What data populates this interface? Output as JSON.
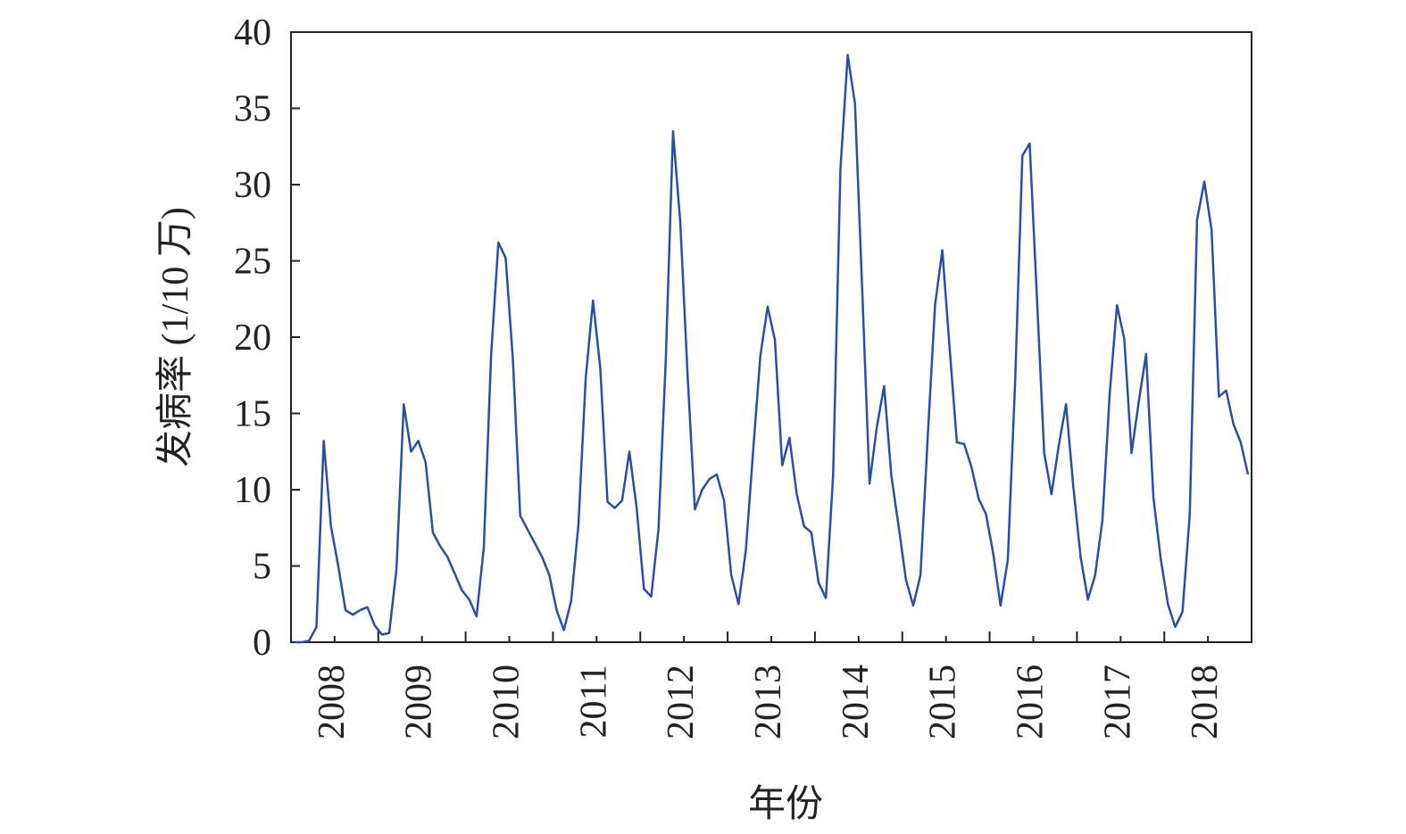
{
  "chart_data": {
    "type": "line",
    "xlabel": "年份",
    "ylabel": "发病率 (1/10 万)",
    "color": "#2b4ea2",
    "categories": [
      null,
      null,
      null,
      null,
      null,
      "2008",
      null,
      null,
      null,
      null,
      null,
      null,
      null,
      null,
      null,
      null,
      null,
      "2009",
      null,
      null,
      null,
      null,
      null,
      null,
      null,
      null,
      null,
      null,
      null,
      "2010",
      null,
      null,
      null,
      null,
      null,
      null,
      null,
      null,
      null,
      null,
      null,
      "2011",
      null,
      null,
      null,
      null,
      null,
      null,
      null,
      null,
      null,
      null,
      null,
      "2012",
      null,
      null,
      null,
      null,
      null,
      null,
      null,
      null,
      null,
      null,
      null,
      "2013",
      null,
      null,
      null,
      null,
      null,
      null,
      null,
      null,
      null,
      null,
      null,
      "2014",
      null,
      null,
      null,
      null,
      null,
      null,
      null,
      null,
      null,
      null,
      null,
      "2015",
      null,
      null,
      null,
      null,
      null,
      null,
      null,
      null,
      null,
      null,
      null,
      "2016",
      null,
      null,
      null,
      null,
      null,
      null,
      null,
      null,
      null,
      null,
      null,
      "2017",
      null,
      null,
      null,
      null,
      null,
      null,
      null,
      null,
      null,
      null,
      null,
      "2018",
      null,
      null,
      null,
      null,
      null,
      null
    ],
    "values": [
      0,
      0,
      0.1,
      1,
      13.2,
      7.6,
      5,
      2.1,
      1.8,
      2.1,
      2.3,
      1.1,
      0.5,
      0.6,
      4.8,
      15.6,
      12.5,
      13.2,
      11.8,
      7.2,
      6.3,
      5.6,
      4.5,
      3.4,
      2.8,
      1.7,
      6.2,
      18.8,
      26.2,
      25.2,
      18.5,
      8.3,
      7.4,
      6.5,
      5.6,
      4.4,
      2.1,
      0.8,
      2.7,
      7.7,
      17.3,
      22.4,
      18,
      9.2,
      8.8,
      9.3,
      12.5,
      8.8,
      3.5,
      3.0,
      7.4,
      18.5,
      33.5,
      27.5,
      17.5,
      8.7,
      10,
      10.7,
      11,
      9.3,
      4.4,
      2.5,
      6,
      12.5,
      18.8,
      22,
      19.8,
      11.6,
      13.4,
      9.7,
      7.6,
      7.2,
      3.9,
      2.9,
      11,
      31,
      38.5,
      35.3,
      23,
      10.4,
      14.1,
      16.8,
      10.9,
      7.6,
      4.1,
      2.4,
      4.4,
      13.5,
      22.1,
      25.7,
      19.3,
      13.1,
      13,
      11.5,
      9.4,
      8.4,
      5.8,
      2.4,
      5.4,
      17,
      31.9,
      32.7,
      22.6,
      12.4,
      9.7,
      12.9,
      15.6,
      10.2,
      5.6,
      2.8,
      4.4,
      8,
      16.3,
      22.1,
      19.9,
      12.4,
      15.8,
      18.9,
      9.5,
      5.5,
      2.5,
      1,
      2,
      8.4,
      27.7,
      30.2,
      27,
      16.1,
      16.5,
      14.3,
      13.1,
      11
    ],
    "ylim": [
      0,
      40
    ],
    "yticks": [
      0,
      5,
      10,
      15,
      20,
      25,
      30,
      35,
      40
    ],
    "grid": false
  }
}
